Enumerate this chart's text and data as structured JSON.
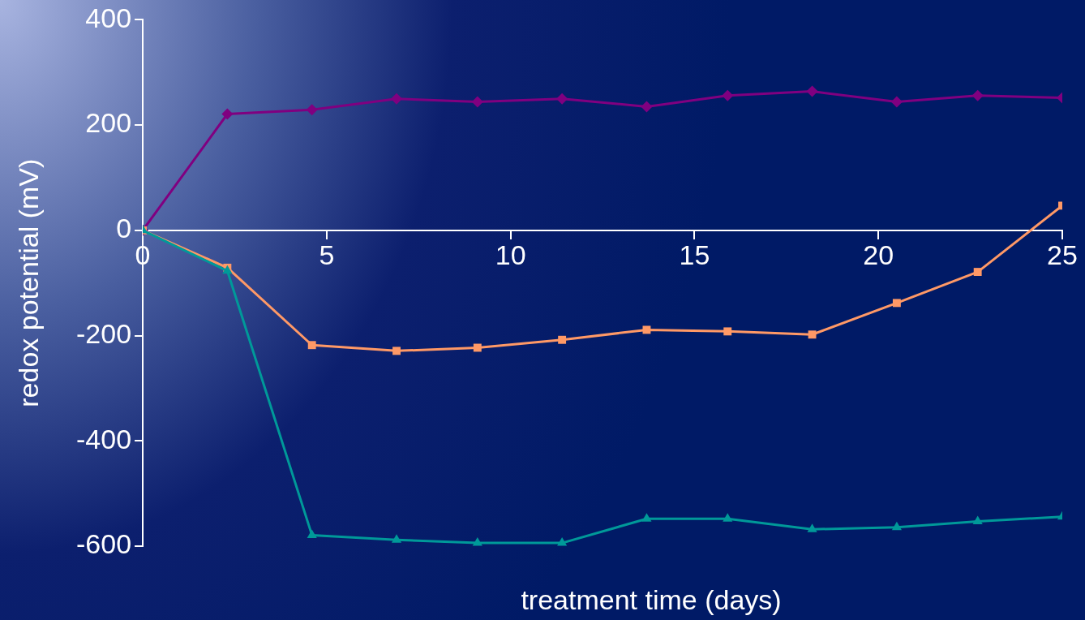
{
  "chart_data": {
    "type": "line",
    "xlabel": "treatment time (days)",
    "ylabel": "redox potential (mV)",
    "xlim": [
      0,
      25
    ],
    "xticks": [
      0,
      5,
      10,
      15,
      20,
      25
    ],
    "ylim": [
      -600,
      400
    ],
    "yticks": [
      -600,
      -400,
      -200,
      0,
      200,
      400
    ],
    "grid": false,
    "legend": false,
    "line_style": "solid",
    "x": [
      0,
      2.3,
      4.6,
      6.9,
      9.1,
      11.4,
      13.7,
      15.9,
      18.2,
      20.5,
      22.7,
      25
    ],
    "series": [
      {
        "color": "#800080",
        "marker": "diamond",
        "values": [
          0,
          221,
          229,
          250,
          244,
          250,
          235,
          256,
          264,
          244,
          256,
          252
        ]
      },
      {
        "color": "#ff9966",
        "marker": "square",
        "values": [
          0,
          -71,
          -218,
          -229,
          -223,
          -208,
          -189,
          -192,
          -198,
          -138,
          -79,
          47
        ]
      },
      {
        "color": "#009999",
        "marker": "triangle",
        "values": [
          0,
          -77,
          -579,
          -588,
          -594,
          -594,
          -548,
          -548,
          -568,
          -564,
          -553,
          -544
        ]
      }
    ]
  }
}
